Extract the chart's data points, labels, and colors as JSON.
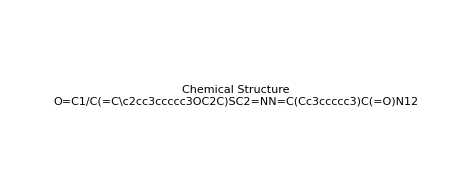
{
  "smiles": "O=C1/C(=C\\c2cc3ccccc3OC2C)SC2=NN=C(Cc3ccccc3)C(=O)N12",
  "title": "",
  "background_color": "#ffffff",
  "figsize": [
    4.6,
    1.9
  ],
  "dpi": 100
}
